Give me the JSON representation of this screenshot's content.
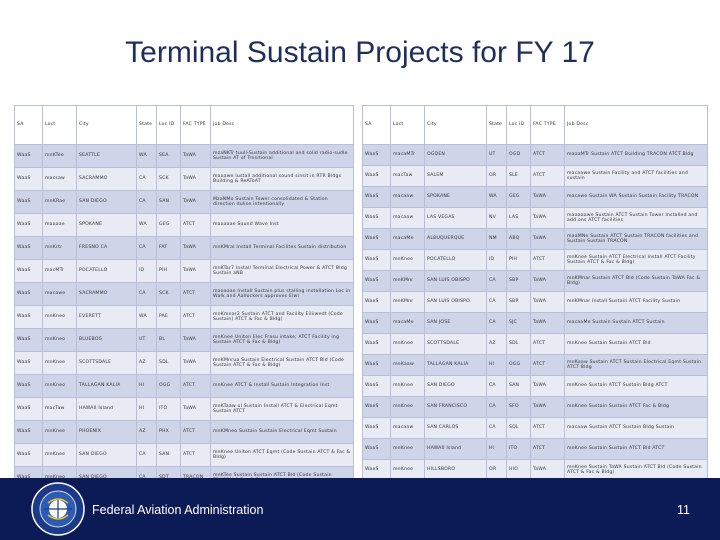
{
  "title": "Terminal Sustain Projects for FY 17",
  "tables": {
    "left": {
      "headers": [
        "SA",
        "Loct",
        "City",
        "State",
        "Loc ID",
        "FAC TYPE",
        "Job Desc"
      ],
      "rows": [
        [
          "WaaS",
          "mnKTee",
          "SEATTLE",
          "WA",
          "SEA",
          "TaWA",
          "mzaNKTr tuull-Sustain additional and solid radio-sudle Sustain AT of Trnsitional"
        ],
        [
          "WaaS",
          "macsaw",
          "SACRAMMO",
          "CA",
          "SCK",
          "TaWA",
          "maaawe lustall additional sound sinsit in RTR Bldgs Building & ReAToAT"
        ],
        [
          "WaaS",
          "mnKRae",
          "SAN DIEGO",
          "CA",
          "SAN",
          "TaWA",
          "MzaNMo Sustain Tower consolidated & Station direction dulise intentionally"
        ],
        [
          "WaaS",
          "maaaae",
          "SPOKANE",
          "WA",
          "GEG",
          "ATCT",
          "maaaaae Sound Wave Inst"
        ],
        [
          "WaaS",
          "mnKrtr",
          "FRESNO CA",
          "CA",
          "FAT",
          "TaWA",
          "mnKMral Install Terminal Facilites Sustain distribution"
        ],
        [
          "WaaS",
          "macMTr",
          "POCATELLO",
          "ID",
          "PIH",
          "TaWA",
          "mnKTar7 Install Terminal Electrical Power & ATCT Bldg Sustain aNB"
        ],
        [
          "WaaS",
          "macawe",
          "SACRAMMO",
          "CA",
          "SCK",
          "ATCT",
          "maaaaae Install Sustain plus stalling installation Loc in Walk and Aallockers approves Elwl"
        ],
        [
          "WaaS",
          "mnKneo",
          "EVERETT",
          "WA",
          "PAE",
          "ATCT",
          "mnKmnar2 Sustain ATCT and Facility Eiliiwedt (Code Sustain) ATCT & Fac & Bldg)"
        ],
        [
          "WaaS",
          "mnKneo",
          "BLUEBOG",
          "UT",
          "BL",
          "TaWA",
          "mnKnee Uniton Elec Frasu intake; ATCT Facility ing Sustain ATCT & Fac & Bldg)"
        ],
        [
          "WaaS",
          "mnKnee",
          "SCOTTSDALE",
          "AZ",
          "SDL",
          "TaWA",
          "mnKMnrua Sustain Electrical Sustain ATCT Bld (Code Sustain ATCT & Fac & Bldg)"
        ],
        [
          "WaaS",
          "mnKneo",
          "TALLAGAN KALIA",
          "HI",
          "OGG",
          "ATCT",
          "mnKnee ATCT & Install Sustain Integration Inst"
        ],
        [
          "WaaS",
          "macTaw",
          "HAWAII Island",
          "HI",
          "ITO",
          "TaWA",
          "mnKTaaw ul Sustain Install ATCT & Electrical Eqmt Sustain ATCT"
        ],
        [
          "WaaS",
          "mnKnee",
          "PHOENIX",
          "AZ",
          "PHX",
          "ATCT",
          "mnKMneo Sustain Sustain Electrical Eqmt Sustain"
        ],
        [
          "WaaS",
          "mnKnee",
          "SAN DIEGO",
          "CA",
          "SAN",
          "ATCT",
          "mnKnee Uniton ATCT Eqmt (Code Sustain ATCT & Fac & Bldg)"
        ],
        [
          "WaaS",
          "mnKneo",
          "SAN DIEGO",
          "CA",
          "SDT",
          "TRACON",
          "mnKTee Sustain Sustain ATCT Bld (Code Sustain TRACON & Fac & Bldg)"
        ]
      ]
    },
    "right": {
      "headers": [
        "SA",
        "Loct",
        "City",
        "State",
        "Loc ID",
        "FAC TYPE",
        "Job Desc"
      ],
      "rows": [
        [
          "WaaS",
          "macaMTr",
          "OGDEN",
          "UT",
          "OGD",
          "ATCT",
          "maaaMTr Sustain ATCT Building TRACON ATCT Bldg"
        ],
        [
          "WaaS",
          "macTaw",
          "SALEM",
          "OR",
          "SLE",
          "ATCT",
          "macaawe Sustain Facility and ATCT facilities and sustain"
        ],
        [
          "WaaS",
          "macaaw",
          "SPOKANE",
          "WA",
          "GEG",
          "TaWA",
          "macawe Sustain WA Sustain Sustain Facility TRACON"
        ],
        [
          "WaaS",
          "macaaw",
          "LAS VEGAS",
          "NV",
          "LAS",
          "TaWA",
          "maaaaawe Sustain ATCT Sustain Tower Installed and add ons ATCT facilities"
        ],
        [
          "WaaS",
          "macaMe",
          "ALBUQUERQUE",
          "NM",
          "ABQ",
          "TaWA",
          "maaMNe Sustain ATCT Sustain TRACON facilities and Sustain Sustain TRACON"
        ],
        [
          "WaaS",
          "mnKnee",
          "POCATELLO",
          "ID",
          "PIH",
          "ATCT",
          "mnKnee Sustain ATCT Electrical Install ATCT Facility Sustain ATCT & Fac & Bldg)"
        ],
        [
          "WaaS",
          "mnKMnr",
          "SAN LUIS OBISPO",
          "CA",
          "SBP",
          "TaWA",
          "mnKMnar Sustain ATCT Bld (Code Sustain TaWA Fac & Bldg)"
        ],
        [
          "WaaS",
          "mnKMnr",
          "SAN LUIS OBISPO",
          "CA",
          "SBP",
          "TaWA",
          "mnKMnar Install Sustain ATCT Facility Sustain"
        ],
        [
          "WaaS",
          "macaMe",
          "SAN JOSE",
          "CA",
          "SJC",
          "TaWA",
          "macaaMe Sustain Sustain ATCT Sustain"
        ],
        [
          "WaaS",
          "mnKnee",
          "SCOTTSDALE",
          "AZ",
          "SDL",
          "ATCT",
          "mnKnee Sustain Sustain ATCT Bld"
        ],
        [
          "WaaS",
          "mnKaaw",
          "TALLAGAN KALIA",
          "HI",
          "OGG",
          "ATCT",
          "mnKaaw Sustain ATCT Sustain Electrical Eqmt Sustain ATCT Bldg"
        ],
        [
          "WaaS",
          "mnKnee",
          "SAN DIEGO",
          "CA",
          "SAN",
          "TaWA",
          "mnKnee Sustain ATCT Sustain Bldg ATCT"
        ],
        [
          "WaaS",
          "mnKnee",
          "SAN FRANCISCO",
          "CA",
          "SFO",
          "TaWA",
          "mnKnee Sustain Sustain ATCT Fac & Bldg"
        ],
        [
          "WaaS",
          "macaaw",
          "SAN CARLOS",
          "CA",
          "SQL",
          "ATCT",
          "macaaw Sustain ATCT Sustain Bldg Sustain"
        ],
        [
          "WaaS",
          "mnKnee",
          "HAWAII Island",
          "HI",
          "ITO",
          "ATCT",
          "mnKnee Sustain Sustain ATCT Bld ATCT"
        ],
        [
          "WaaS",
          "mnKnee",
          "HILLSBORO",
          "OR",
          "HIO",
          "TaWA",
          "mnKnee Sustain TaWA Sustain ATCT Bld (Code Sustain ATCT & Fac & Bldg)"
        ]
      ]
    }
  },
  "footer": {
    "org": "Federal Aviation Administration",
    "page_number": "11",
    "seal_text": "FEDERAL AVIATION ADMINISTRATION"
  },
  "colors": {
    "title": "#1f2f5c",
    "footer_bg": "#0c1a56",
    "row_dark": "#cfd5e8",
    "row_light": "#e8ebf4"
  }
}
